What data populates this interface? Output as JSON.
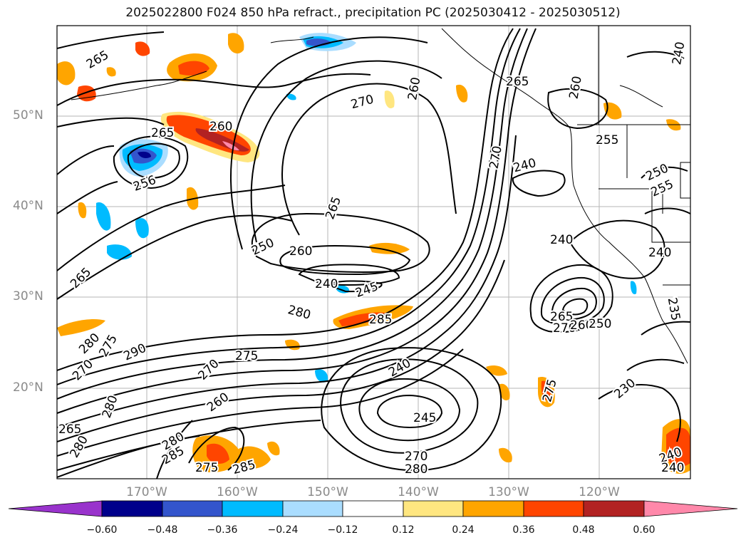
{
  "title": "2025022800 F024 850 hPa refract., precipitation PC (2025030412 - 2025030512)",
  "latitude_labels": [
    "50°N",
    "40°N",
    "30°N",
    "20°N"
  ],
  "longitude_labels": [
    "170°W",
    "160°W",
    "150°W",
    "140°W",
    "130°W",
    "120°W"
  ],
  "colorbar": {
    "ticks": [
      "−0.60",
      "−0.48",
      "−0.36",
      "−0.24",
      "−0.12",
      "0.12",
      "0.24",
      "0.36",
      "0.48",
      "0.60"
    ],
    "colors": [
      "#9933cc",
      "#00008b",
      "#3355cc",
      "#00bbff",
      "#aaddff",
      "#ffffff",
      "#ffe680",
      "#ffa500",
      "#ff4500",
      "#b22222",
      "#ff88aa"
    ]
  },
  "contour_labels": [
    "265",
    "260",
    "265",
    "256",
    "270",
    "260",
    "265",
    "260",
    "255",
    "240",
    "250",
    "260",
    "265",
    "240",
    "240",
    "250",
    "255",
    "240",
    "240",
    "270",
    "235",
    "245",
    "280",
    "285",
    "265",
    "280",
    "275",
    "290",
    "275",
    "270",
    "260",
    "265",
    "280",
    "285",
    "275",
    "285",
    "240",
    "245",
    "270",
    "280",
    "230",
    "265",
    "270",
    "260",
    "250",
    "275",
    "240",
    "240",
    "270",
    "280",
    "280"
  ]
}
